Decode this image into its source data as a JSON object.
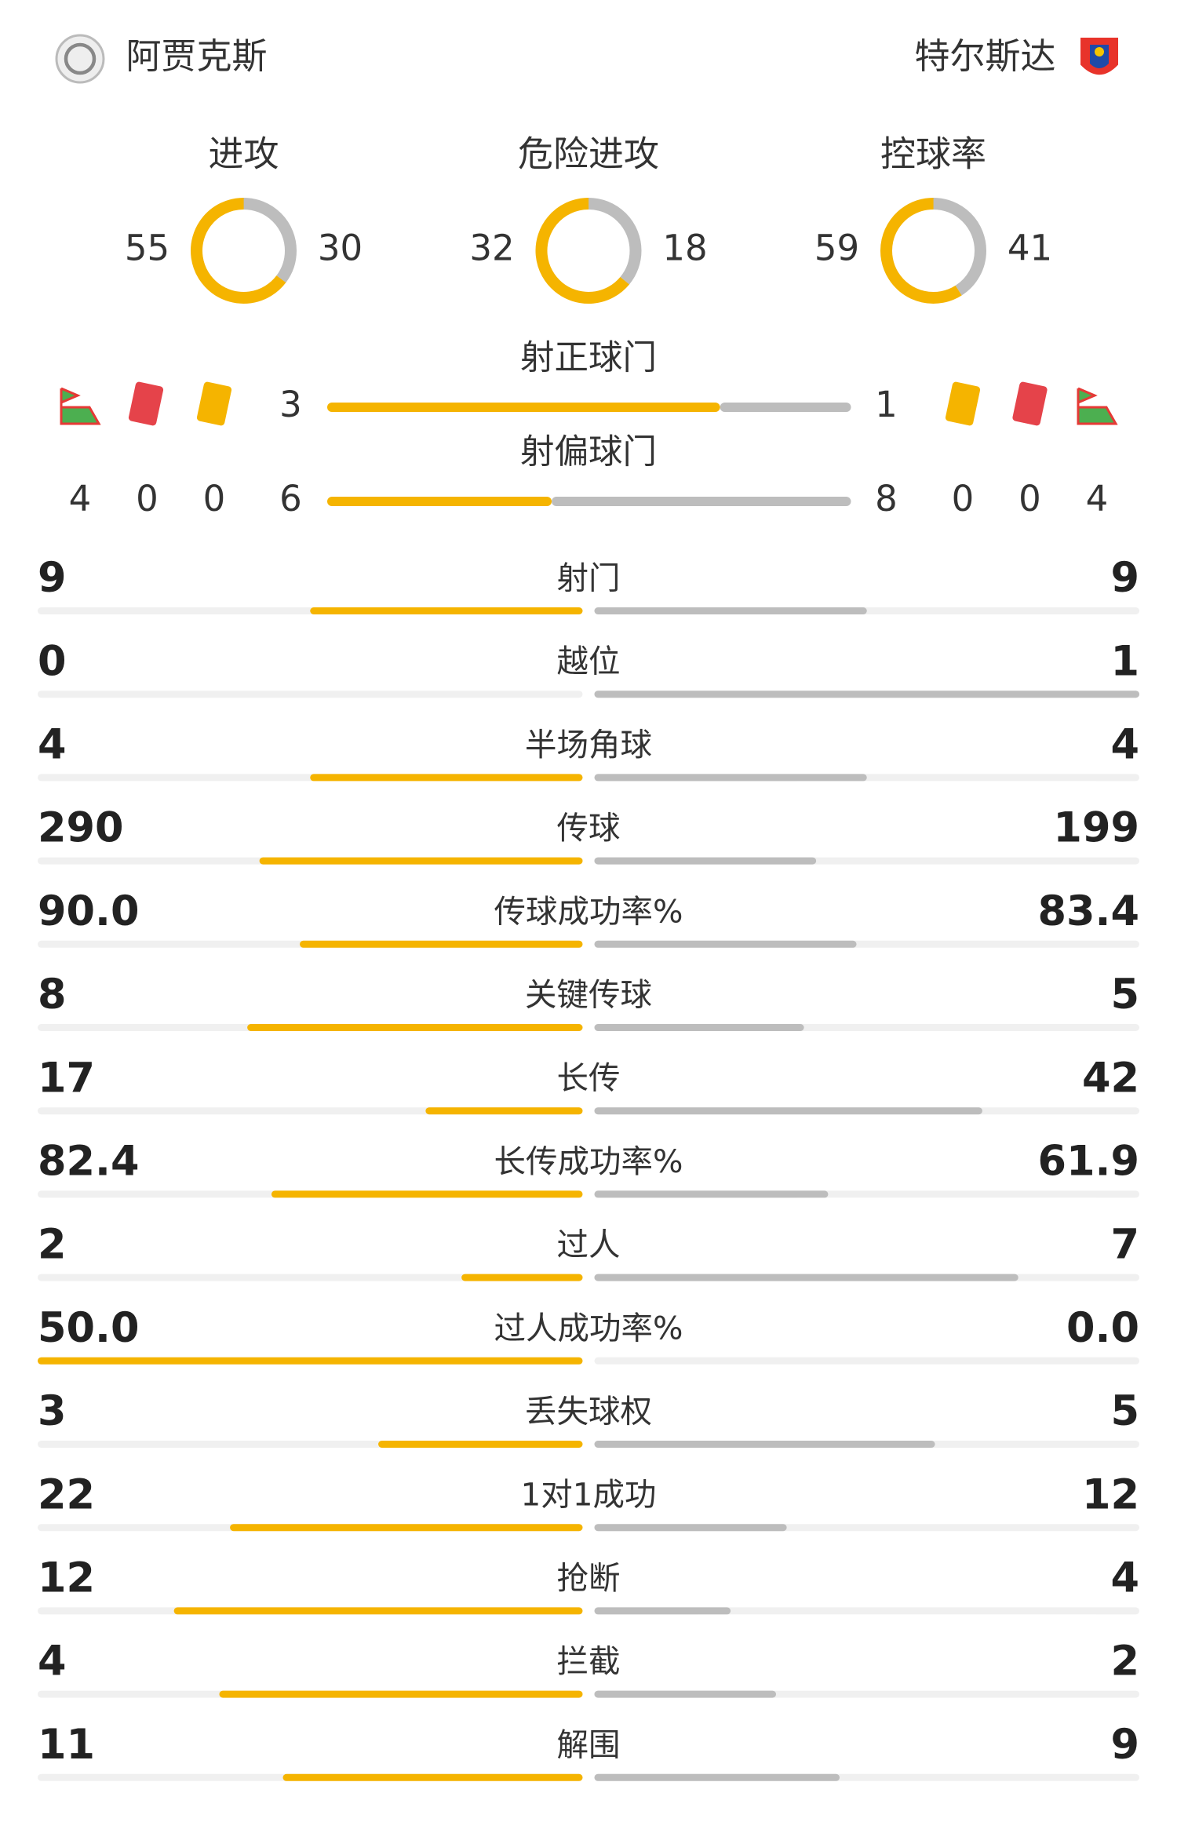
{
  "teams": {
    "home": "阿贾克斯",
    "away": "特尔斯达"
  },
  "summary": [
    {
      "label": "进攻",
      "home": 55,
      "away": 30
    },
    {
      "label": "危险进攻",
      "home": 32,
      "away": 18
    },
    {
      "label": "控球率",
      "home": 59,
      "away": 41
    }
  ],
  "shots": [
    {
      "label": "射正球门",
      "home": 3,
      "away": 1
    },
    {
      "label": "射偏球门",
      "home": 6,
      "away": 8
    }
  ],
  "discipline": {
    "home": {
      "corners": 4,
      "red_cards": 0,
      "yellow_cards": 0
    },
    "away": {
      "corners": 4,
      "red_cards": 0,
      "yellow_cards": 0
    }
  },
  "stats": [
    {
      "label": "射门",
      "home": 9,
      "away": 9
    },
    {
      "label": "越位",
      "home": 0,
      "away": 1
    },
    {
      "label": "半场角球",
      "home": 4,
      "away": 4
    },
    {
      "label": "传球",
      "home": 290,
      "away": 199
    },
    {
      "label": "传球成功率%",
      "home": 90,
      "home_label": "90.0",
      "away": 83.4
    },
    {
      "label": "关键传球",
      "home": 8,
      "away": 5
    },
    {
      "label": "长传",
      "home": 17,
      "away": 42
    },
    {
      "label": "长传成功率%",
      "home": 82.4,
      "away": 61.9
    },
    {
      "label": "过人",
      "home": 2,
      "away": 7
    },
    {
      "label": "过人成功率%",
      "home": 50,
      "home_label": "50.0",
      "away": 0,
      "away_label": "0.0"
    },
    {
      "label": "丢失球权",
      "home": 3,
      "away": 5
    },
    {
      "label": "1对1成功",
      "home": 22,
      "away": 12
    },
    {
      "label": "抢断",
      "home": 12,
      "away": 4
    },
    {
      "label": "拦截",
      "home": 4,
      "away": 2
    },
    {
      "label": "解围",
      "home": 11,
      "away": 9
    }
  ]
}
